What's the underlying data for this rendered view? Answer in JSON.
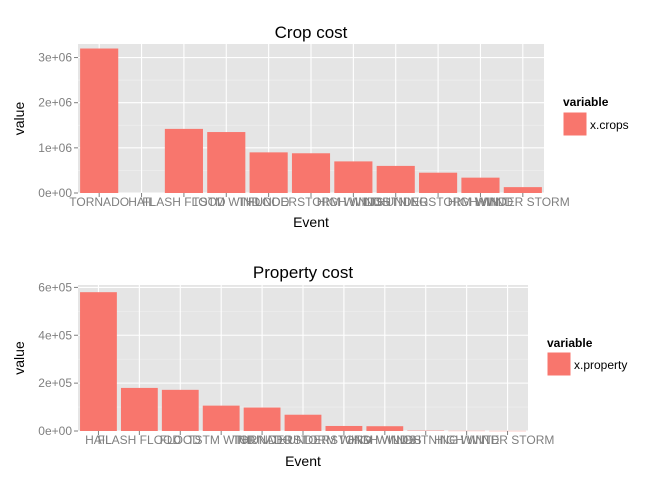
{
  "chart_data": [
    {
      "type": "bar",
      "title": "Crop cost",
      "xlabel": "Event",
      "ylabel": "value",
      "categories": [
        "TORNADO",
        "HAIL",
        "FLASH FLOOD",
        "TSTM WIND",
        "FLOOD",
        "THUNDERSTORM WINDS",
        "HIGH WINDS",
        "LIGHTNING",
        "THUNDERSTORM WIND",
        "HIGH WIND",
        "WINTER STORM"
      ],
      "series": [
        {
          "name": "x.crops",
          "values": [
            3200000,
            0,
            1420000,
            1350000,
            900000,
            880000,
            700000,
            600000,
            450000,
            340000,
            130000
          ]
        }
      ],
      "ylim": [
        0,
        3300000
      ],
      "yticks": [
        0,
        1000000,
        2000000,
        3000000
      ],
      "ytick_labels": [
        "0e+00",
        "1e+06",
        "2e+06",
        "3e+06"
      ],
      "grid": true,
      "legend": {
        "title": "variable",
        "placement": "right",
        "entries": [
          "x.crops"
        ]
      },
      "colors": {
        "bar": "#F8766D",
        "panel": "#E5E5E5",
        "grid": "#F2F2F2"
      }
    },
    {
      "type": "bar",
      "title": "Property cost",
      "xlabel": "Event",
      "ylabel": "value",
      "categories": [
        "HAIL",
        "FLASH FLOOD",
        "FLOOD",
        "TSTM WIND",
        "TORNADO",
        "THUNDERSTORM WIND",
        "THUNDERSTORM WINDS",
        "HIGH WINDS",
        "LIGHTNING",
        "HIGH WIND",
        "WINTER STORM"
      ],
      "series": [
        {
          "name": "x.property",
          "values": [
            580000,
            180000,
            172000,
            106000,
            98000,
            68000,
            21000,
            20000,
            1500,
            800,
            500
          ]
        }
      ],
      "ylim": [
        0,
        610000
      ],
      "yticks": [
        0,
        200000,
        400000,
        600000
      ],
      "ytick_labels": [
        "0e+00",
        "2e+05",
        "4e+05",
        "6e+05"
      ],
      "grid": true,
      "legend": {
        "title": "variable",
        "placement": "right",
        "entries": [
          "x.property"
        ]
      },
      "colors": {
        "bar": "#F8766D",
        "panel": "#E5E5E5",
        "grid": "#F2F2F2"
      }
    }
  ]
}
